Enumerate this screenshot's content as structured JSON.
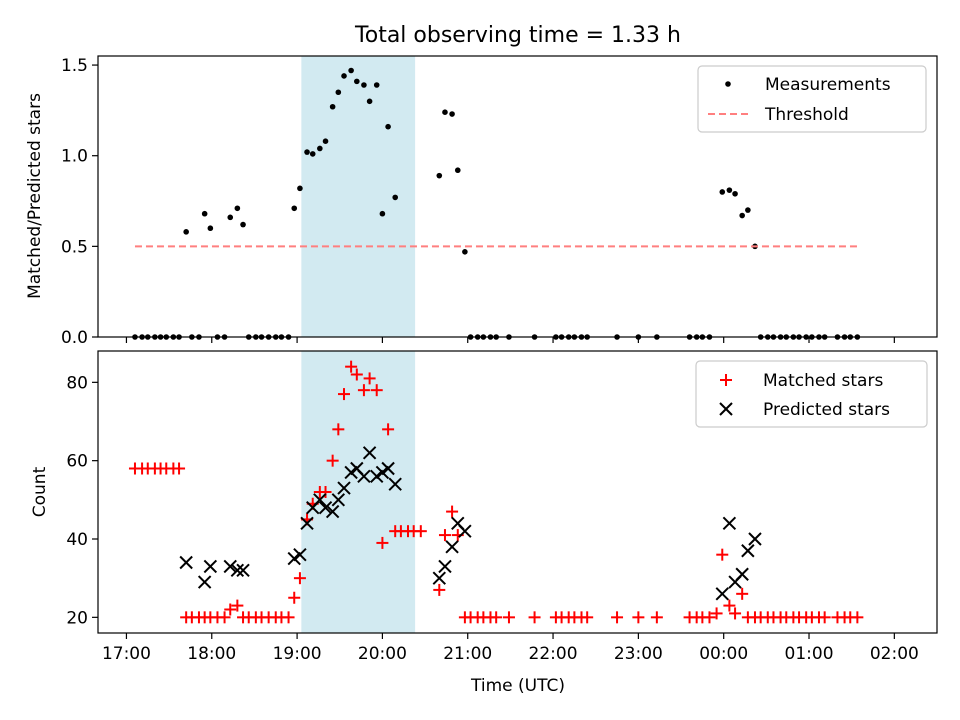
{
  "chart_data": [
    {
      "type": "scatter",
      "title": "Total observing time = 1.33 h",
      "xlabel": "",
      "ylabel": "Matched/Predicted stars",
      "xlim": [
        "16:40",
        "02:30"
      ],
      "ylim": [
        0,
        1.55
      ],
      "x_ticks": [
        "17:00",
        "18:00",
        "19:00",
        "20:00",
        "21:00",
        "22:00",
        "23:00",
        "00:00",
        "01:00",
        "02:00"
      ],
      "y_ticks": [
        "0.0",
        "0.5",
        "1.0",
        "1.5"
      ],
      "shaded_span": {
        "start": "19:03",
        "end": "20:23",
        "color": "#add8e6"
      },
      "legend": {
        "placement": "top-right",
        "entries": [
          "Measurements",
          "Threshold"
        ]
      },
      "series": [
        {
          "name": "Measurements",
          "marker": "dot",
          "color": "#000000",
          "points": [
            [
              "17:06",
              0
            ],
            [
              "17:11",
              0
            ],
            [
              "17:15",
              0
            ],
            [
              "17:20",
              0
            ],
            [
              "17:24",
              0
            ],
            [
              "17:28",
              0
            ],
            [
              "17:33",
              0
            ],
            [
              "17:37",
              0
            ],
            [
              "17:42",
              0.58
            ],
            [
              "17:46",
              0
            ],
            [
              "17:51",
              0
            ],
            [
              "17:55",
              0.68
            ],
            [
              "17:59",
              0.6
            ],
            [
              "18:04",
              0
            ],
            [
              "18:09",
              0
            ],
            [
              "18:13",
              0.66
            ],
            [
              "18:18",
              0.71
            ],
            [
              "18:22",
              0.62
            ],
            [
              "18:26",
              0
            ],
            [
              "18:31",
              0
            ],
            [
              "18:35",
              0
            ],
            [
              "18:40",
              0
            ],
            [
              "18:45",
              0
            ],
            [
              "18:49",
              0
            ],
            [
              "18:54",
              0
            ],
            [
              "18:58",
              0.71
            ],
            [
              "19:02",
              0.82
            ],
            [
              "19:07",
              1.02
            ],
            [
              "19:11",
              1.01
            ],
            [
              "19:16",
              1.04
            ],
            [
              "19:20",
              1.08
            ],
            [
              "19:25",
              1.27
            ],
            [
              "19:29",
              1.35
            ],
            [
              "19:33",
              1.44
            ],
            [
              "19:38",
              1.47
            ],
            [
              "19:42",
              1.41
            ],
            [
              "19:47",
              1.39
            ],
            [
              "19:51",
              1.3
            ],
            [
              "19:56",
              1.39
            ],
            [
              "20:00",
              0.68
            ],
            [
              "20:04",
              1.16
            ],
            [
              "20:09",
              0.77
            ],
            [
              "20:40",
              0.89
            ],
            [
              "20:44",
              1.24
            ],
            [
              "20:49",
              1.23
            ],
            [
              "20:53",
              0.92
            ],
            [
              "20:58",
              0.47
            ],
            [
              "21:02",
              0
            ],
            [
              "21:07",
              0
            ],
            [
              "21:11",
              0
            ],
            [
              "21:16",
              0
            ],
            [
              "21:20",
              0
            ],
            [
              "21:29",
              0
            ],
            [
              "21:47",
              0
            ],
            [
              "22:02",
              0
            ],
            [
              "22:06",
              0
            ],
            [
              "22:11",
              0
            ],
            [
              "22:15",
              0
            ],
            [
              "22:20",
              0
            ],
            [
              "22:24",
              0
            ],
            [
              "22:45",
              0
            ],
            [
              "23:00",
              0
            ],
            [
              "23:13",
              0
            ],
            [
              "23:36",
              0
            ],
            [
              "23:41",
              0
            ],
            [
              "23:45",
              0
            ],
            [
              "23:50",
              0
            ],
            [
              "23:59",
              0.8
            ],
            [
              "00:04",
              0.81
            ],
            [
              "00:08",
              0.79
            ],
            [
              "00:13",
              0.67
            ],
            [
              "00:17",
              0.7
            ],
            [
              "00:22",
              0.5
            ],
            [
              "00:26",
              0
            ],
            [
              "00:31",
              0
            ],
            [
              "00:35",
              0
            ],
            [
              "00:40",
              0
            ],
            [
              "00:44",
              0
            ],
            [
              "00:49",
              0
            ],
            [
              "00:53",
              0
            ],
            [
              "00:58",
              0
            ],
            [
              "01:02",
              0
            ],
            [
              "01:07",
              0
            ],
            [
              "01:11",
              0
            ],
            [
              "01:20",
              0
            ],
            [
              "01:25",
              0
            ],
            [
              "01:29",
              0
            ],
            [
              "01:34",
              0
            ]
          ]
        },
        {
          "name": "Threshold",
          "style": "dashed",
          "color": "#ff7f7f",
          "points": [
            [
              "17:06",
              0.5
            ],
            [
              "01:34",
              0.5
            ]
          ]
        }
      ]
    },
    {
      "type": "scatter",
      "title": "",
      "xlabel": "Time (UTC)",
      "ylabel": "Count",
      "xlim": [
        "16:40",
        "02:30"
      ],
      "ylim": [
        16,
        88
      ],
      "x_ticks": [
        "17:00",
        "18:00",
        "19:00",
        "20:00",
        "21:00",
        "22:00",
        "23:00",
        "00:00",
        "01:00",
        "02:00"
      ],
      "y_ticks": [
        "20",
        "40",
        "60",
        "80"
      ],
      "shaded_span": {
        "start": "19:03",
        "end": "20:23",
        "color": "#add8e6"
      },
      "legend": {
        "placement": "top-right",
        "entries": [
          "Matched stars",
          "Predicted stars"
        ]
      },
      "series": [
        {
          "name": "Matched stars",
          "marker": "plus",
          "color": "#ff0000",
          "points": [
            [
              "17:06",
              58
            ],
            [
              "17:11",
              58
            ],
            [
              "17:15",
              58
            ],
            [
              "17:20",
              58
            ],
            [
              "17:24",
              58
            ],
            [
              "17:28",
              58
            ],
            [
              "17:33",
              58
            ],
            [
              "17:37",
              58
            ],
            [
              "17:42",
              20
            ],
            [
              "17:46",
              20
            ],
            [
              "17:51",
              20
            ],
            [
              "17:55",
              20
            ],
            [
              "17:59",
              20
            ],
            [
              "18:04",
              20
            ],
            [
              "18:09",
              20
            ],
            [
              "18:13",
              22
            ],
            [
              "18:18",
              23
            ],
            [
              "18:22",
              20
            ],
            [
              "18:26",
              20
            ],
            [
              "18:31",
              20
            ],
            [
              "18:35",
              20
            ],
            [
              "18:40",
              20
            ],
            [
              "18:45",
              20
            ],
            [
              "18:49",
              20
            ],
            [
              "18:54",
              20
            ],
            [
              "18:58",
              25
            ],
            [
              "19:02",
              30
            ],
            [
              "19:07",
              45
            ],
            [
              "19:11",
              49
            ],
            [
              "19:16",
              52
            ],
            [
              "19:20",
              52
            ],
            [
              "19:25",
              60
            ],
            [
              "19:29",
              68
            ],
            [
              "19:33",
              77
            ],
            [
              "19:38",
              84
            ],
            [
              "19:42",
              82
            ],
            [
              "19:47",
              78
            ],
            [
              "19:51",
              81
            ],
            [
              "19:56",
              78
            ],
            [
              "20:00",
              39
            ],
            [
              "20:04",
              68
            ],
            [
              "20:09",
              42
            ],
            [
              "20:13",
              42
            ],
            [
              "20:18",
              42
            ],
            [
              "20:22",
              42
            ],
            [
              "20:27",
              42
            ],
            [
              "20:40",
              27
            ],
            [
              "20:44",
              41
            ],
            [
              "20:49",
              47
            ],
            [
              "20:53",
              41
            ],
            [
              "20:58",
              20
            ],
            [
              "21:02",
              20
            ],
            [
              "21:07",
              20
            ],
            [
              "21:11",
              20
            ],
            [
              "21:16",
              20
            ],
            [
              "21:20",
              20
            ],
            [
              "21:29",
              20
            ],
            [
              "21:47",
              20
            ],
            [
              "22:02",
              20
            ],
            [
              "22:06",
              20
            ],
            [
              "22:11",
              20
            ],
            [
              "22:15",
              20
            ],
            [
              "22:20",
              20
            ],
            [
              "22:24",
              20
            ],
            [
              "22:45",
              20
            ],
            [
              "23:00",
              20
            ],
            [
              "23:13",
              20
            ],
            [
              "23:36",
              20
            ],
            [
              "23:41",
              20
            ],
            [
              "23:45",
              20
            ],
            [
              "23:50",
              20
            ],
            [
              "23:55",
              21
            ],
            [
              "23:59",
              36
            ],
            [
              "00:04",
              23
            ],
            [
              "00:08",
              21
            ],
            [
              "00:13",
              26
            ],
            [
              "00:17",
              20
            ],
            [
              "00:22",
              20
            ],
            [
              "00:26",
              20
            ],
            [
              "00:31",
              20
            ],
            [
              "00:35",
              20
            ],
            [
              "00:40",
              20
            ],
            [
              "00:44",
              20
            ],
            [
              "00:49",
              20
            ],
            [
              "00:53",
              20
            ],
            [
              "00:58",
              20
            ],
            [
              "01:02",
              20
            ],
            [
              "01:07",
              20
            ],
            [
              "01:11",
              20
            ],
            [
              "01:20",
              20
            ],
            [
              "01:25",
              20
            ],
            [
              "01:29",
              20
            ],
            [
              "01:34",
              20
            ]
          ]
        },
        {
          "name": "Predicted stars",
          "marker": "x",
          "color": "#000000",
          "points": [
            [
              "17:42",
              34
            ],
            [
              "17:55",
              29
            ],
            [
              "17:59",
              33
            ],
            [
              "18:13",
              33
            ],
            [
              "18:18",
              32
            ],
            [
              "18:22",
              32
            ],
            [
              "18:58",
              35
            ],
            [
              "19:02",
              36
            ],
            [
              "19:07",
              44
            ],
            [
              "19:11",
              48
            ],
            [
              "19:16",
              50
            ],
            [
              "19:20",
              48
            ],
            [
              "19:25",
              47
            ],
            [
              "19:29",
              50
            ],
            [
              "19:33",
              53
            ],
            [
              "19:38",
              57
            ],
            [
              "19:42",
              58
            ],
            [
              "19:47",
              56
            ],
            [
              "19:51",
              62
            ],
            [
              "19:56",
              56
            ],
            [
              "20:00",
              57
            ],
            [
              "20:04",
              58
            ],
            [
              "20:09",
              54
            ],
            [
              "20:40",
              30
            ],
            [
              "20:44",
              33
            ],
            [
              "20:49",
              38
            ],
            [
              "20:53",
              44
            ],
            [
              "20:58",
              42
            ],
            [
              "23:59",
              26
            ],
            [
              "00:04",
              44
            ],
            [
              "00:08",
              29
            ],
            [
              "00:13",
              31
            ],
            [
              "00:17",
              37
            ],
            [
              "00:22",
              40
            ]
          ]
        }
      ]
    }
  ]
}
